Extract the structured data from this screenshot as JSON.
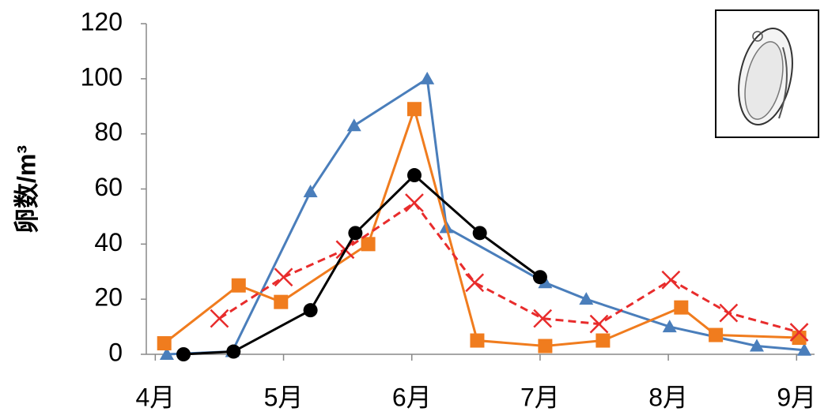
{
  "chart_data": {
    "type": "line",
    "y_label": "卵数/m³",
    "xlim": [
      3.93,
      9.14
    ],
    "xticks": [
      {
        "value": 4,
        "label": "4月"
      },
      {
        "value": 5,
        "label": "5月"
      },
      {
        "value": 6,
        "label": "6月"
      },
      {
        "value": 7,
        "label": "7月"
      },
      {
        "value": 8,
        "label": "8月"
      },
      {
        "value": 9,
        "label": "9月"
      }
    ],
    "ylim": [
      0,
      120
    ],
    "yticks": [
      0,
      20,
      40,
      60,
      80,
      100,
      120
    ],
    "grid": false,
    "series": [
      {
        "color": "#4a7ebb",
        "marker": "triangle",
        "dashed": false,
        "x": [
          4.09,
          4.6,
          5.21,
          5.55,
          6.12,
          6.27,
          7.04,
          7.36,
          8.01,
          8.69,
          9.06
        ],
        "values": [
          0,
          1,
          59,
          83,
          100,
          46,
          26,
          20,
          10,
          3,
          1.5
        ]
      },
      {
        "color": "#f07c1e",
        "marker": "square",
        "dashed": false,
        "x": [
          4.07,
          4.65,
          4.98,
          5.66,
          6.02,
          6.51,
          7.04,
          7.49,
          8.1,
          8.37,
          9.02
        ],
        "values": [
          4,
          25,
          19,
          40,
          89,
          5,
          3,
          5,
          17,
          7,
          6
        ]
      },
      {
        "color": "#e82c2c",
        "marker": "x",
        "dashed": true,
        "x": [
          4.5,
          5.0,
          5.48,
          6.02,
          6.49,
          7.02,
          7.46,
          8.02,
          8.47,
          9.02
        ],
        "values": [
          13,
          28,
          38,
          55,
          26,
          13,
          11,
          27,
          15,
          8
        ]
      },
      {
        "color": "#000000",
        "marker": "circle",
        "dashed": false,
        "x": [
          4.22,
          4.61,
          5.21,
          5.56,
          6.02,
          6.53,
          7.0
        ],
        "values": [
          0,
          1,
          16,
          44,
          65,
          44,
          28
        ]
      }
    ]
  }
}
